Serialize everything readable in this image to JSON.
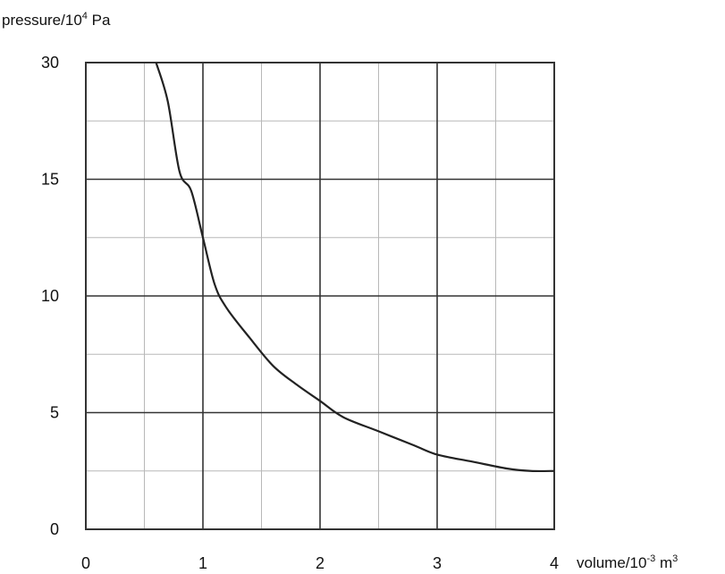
{
  "chart_data": {
    "type": "line",
    "xlabel": {
      "base": "volume/10",
      "exp": "-3",
      "unit": " m",
      "unit_exp": "3"
    },
    "ylabel": {
      "base": "pressure/10",
      "exp": "4",
      "unit": " Pa"
    },
    "x_ticks": [
      "0",
      "1",
      "2",
      "3",
      "4"
    ],
    "y_ticks": [
      "0",
      "5",
      "10",
      "15",
      "30"
    ],
    "y_tick_values": [
      0,
      5,
      10,
      15,
      30
    ],
    "xlim": [
      0,
      4
    ],
    "grid": true,
    "minor_grid_step_x": 0.5,
    "series": [
      {
        "x": [
          0.6,
          0.7,
          0.8,
          0.9,
          1.0,
          1.1,
          1.2,
          1.4,
          1.6,
          1.8,
          2.0,
          2.2,
          2.5,
          2.8,
          3.0,
          3.3,
          3.6,
          3.8,
          4.0
        ],
        "y": [
          30,
          25,
          16,
          14.5,
          12.5,
          10.5,
          9.5,
          8.2,
          7.0,
          6.2,
          5.5,
          4.8,
          4.2,
          3.6,
          3.2,
          2.9,
          2.6,
          2.5,
          2.5
        ]
      }
    ]
  }
}
